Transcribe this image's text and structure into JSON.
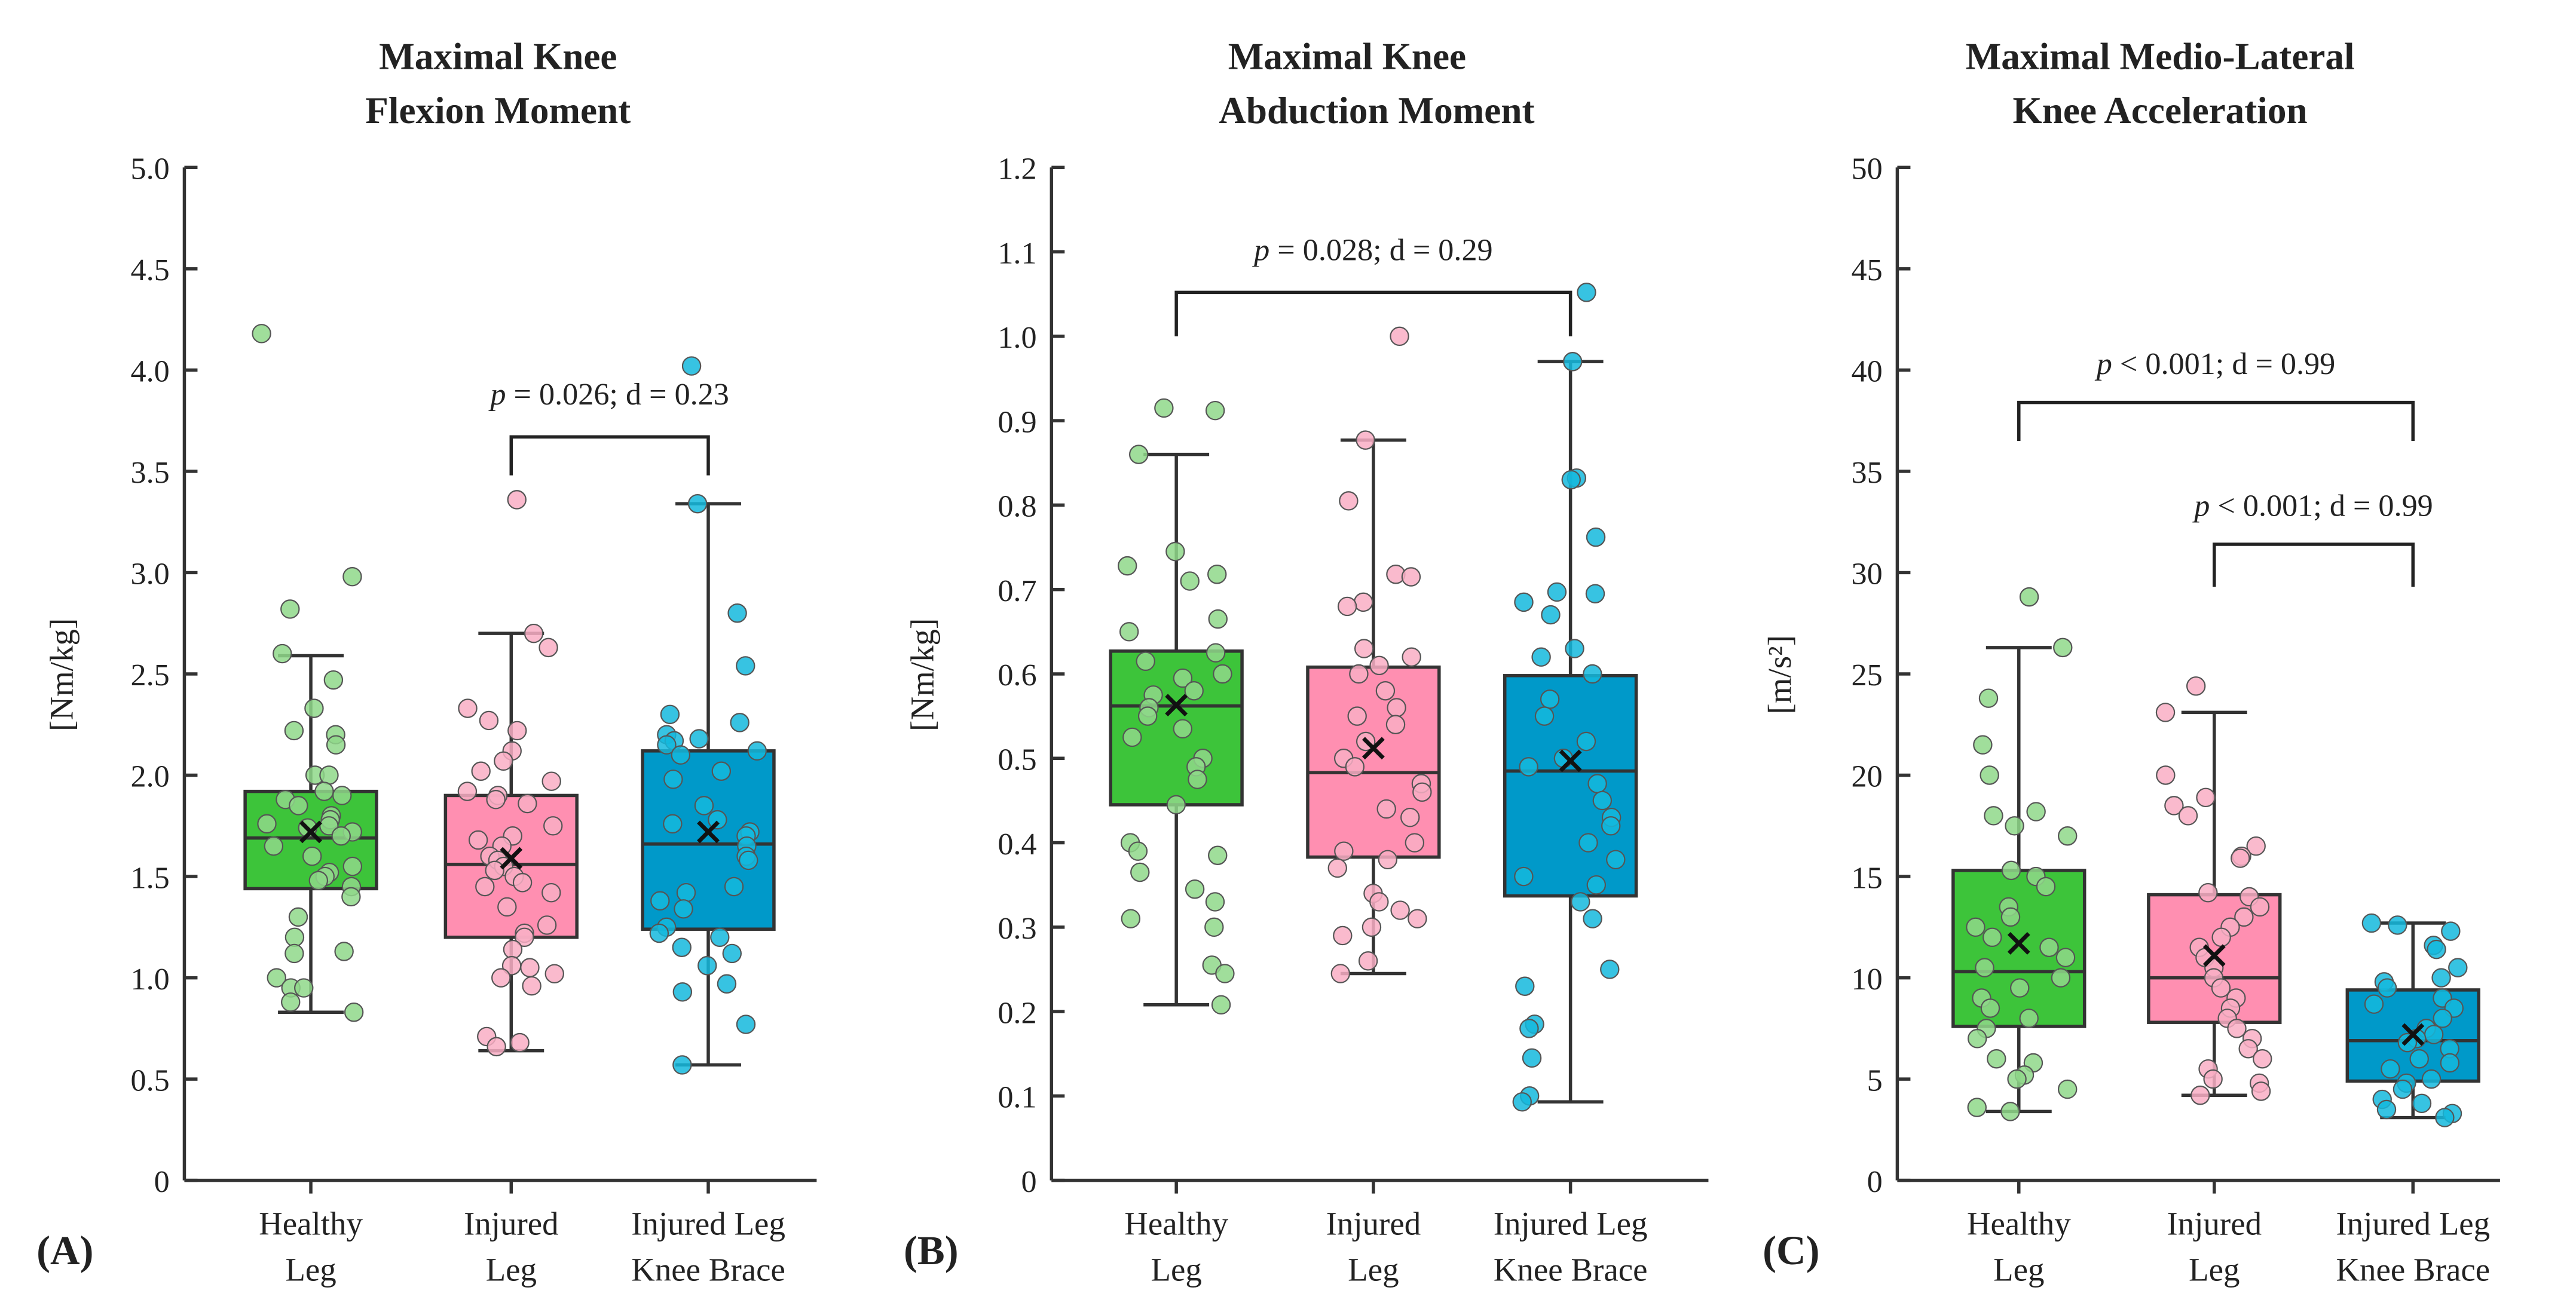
{
  "chart_data": [
    {
      "type": "box",
      "panel_label": "(A)",
      "title_lines": [
        "Maximal Knee",
        "Flexion Moment"
      ],
      "ylabel": "[Nm/kg]",
      "ylim": [
        0,
        5.0
      ],
      "yticks": [
        0,
        0.5,
        1.0,
        1.5,
        2.0,
        2.5,
        3.0,
        3.5,
        4.0,
        4.5,
        5.0
      ],
      "ytick_labels": [
        "0",
        "0.5",
        "1.0",
        "1.5",
        "2.0",
        "2.5",
        "3.0",
        "3.5",
        "4.0",
        "4.5",
        "5.0"
      ],
      "categories": [
        [
          "Healthy",
          "Leg"
        ],
        [
          "Injured",
          "Leg"
        ],
        [
          "Injured Leg",
          "Knee Brace"
        ]
      ],
      "groups": [
        {
          "q1": 1.44,
          "median": 1.69,
          "q3": 1.92,
          "whisker_low": 0.83,
          "whisker_high": 2.59,
          "mean": 1.72,
          "points": [
            4.18,
            2.98,
            2.82,
            2.6,
            2.47,
            2.33,
            2.22,
            2.2,
            2.15,
            2.0,
            2.0,
            1.92,
            1.9,
            1.88,
            1.85,
            1.8,
            1.78,
            1.76,
            1.75,
            1.74,
            1.72,
            1.7,
            1.65,
            1.6,
            1.55,
            1.52,
            1.5,
            1.48,
            1.45,
            1.4,
            1.3,
            1.2,
            1.13,
            1.12,
            1.0,
            0.95,
            0.95,
            0.88,
            0.83
          ]
        },
        {
          "q1": 1.2,
          "median": 1.56,
          "q3": 1.9,
          "whisker_low": 0.64,
          "whisker_high": 2.7,
          "mean": 1.59,
          "points": [
            3.36,
            2.7,
            2.63,
            2.33,
            2.27,
            2.22,
            2.12,
            2.07,
            2.02,
            1.97,
            1.92,
            1.9,
            1.88,
            1.86,
            1.75,
            1.7,
            1.68,
            1.65,
            1.6,
            1.58,
            1.55,
            1.53,
            1.5,
            1.47,
            1.45,
            1.42,
            1.35,
            1.26,
            1.22,
            1.2,
            1.14,
            1.06,
            1.05,
            1.02,
            1.0,
            0.96,
            0.71,
            0.68,
            0.66
          ]
        },
        {
          "q1": 1.24,
          "median": 1.66,
          "q3": 2.12,
          "whisker_low": 0.57,
          "whisker_high": 3.34,
          "mean": 1.72,
          "points": [
            4.02,
            3.34,
            2.8,
            2.54,
            2.3,
            2.26,
            2.2,
            2.18,
            2.17,
            2.15,
            2.12,
            2.1,
            2.02,
            1.98,
            1.85,
            1.78,
            1.76,
            1.72,
            1.7,
            1.65,
            1.6,
            1.58,
            1.45,
            1.42,
            1.38,
            1.34,
            1.25,
            1.22,
            1.2,
            1.15,
            1.12,
            1.06,
            0.97,
            0.93,
            0.77,
            0.57
          ]
        }
      ],
      "annotations": [
        {
          "from": 1,
          "to": 2,
          "y_label": 3.83,
          "y_bar": 3.67,
          "y_end": 3.48,
          "text_italic": "p",
          "text": " = 0.026; d = 0.23"
        }
      ]
    },
    {
      "type": "box",
      "panel_label": "(B)",
      "title_lines": [
        "Maximal Knee",
        "Abduction Moment"
      ],
      "ylabel": "[Nm/kg]",
      "ylim": [
        0,
        1.2
      ],
      "yticks": [
        0,
        0.1,
        0.2,
        0.3,
        0.4,
        0.5,
        0.6,
        0.7,
        0.8,
        0.9,
        1.0,
        1.1,
        1.2
      ],
      "ytick_labels": [
        "0",
        "0.1",
        "0.2",
        "0.3",
        "0.4",
        "0.5",
        "0.6",
        "0.7",
        "0.8",
        "0.9",
        "1.0",
        "1.1",
        "1.2"
      ],
      "categories": [
        [
          "Healthy",
          "Leg"
        ],
        [
          "Injured",
          "Leg"
        ],
        [
          "Injured Leg",
          "Knee Brace"
        ]
      ],
      "groups": [
        {
          "q1": 0.445,
          "median": 0.562,
          "q3": 0.627,
          "whisker_low": 0.208,
          "whisker_high": 0.86,
          "mean": 0.563,
          "points": [
            0.915,
            0.912,
            0.86,
            0.745,
            0.728,
            0.718,
            0.71,
            0.665,
            0.65,
            0.625,
            0.615,
            0.6,
            0.595,
            0.58,
            0.575,
            0.56,
            0.55,
            0.535,
            0.525,
            0.5,
            0.49,
            0.475,
            0.445,
            0.4,
            0.39,
            0.385,
            0.365,
            0.345,
            0.33,
            0.31,
            0.3,
            0.255,
            0.245,
            0.208
          ]
        },
        {
          "q1": 0.383,
          "median": 0.483,
          "q3": 0.608,
          "whisker_low": 0.245,
          "whisker_high": 0.877,
          "mean": 0.512,
          "points": [
            1.0,
            0.877,
            0.805,
            0.718,
            0.715,
            0.685,
            0.68,
            0.63,
            0.62,
            0.61,
            0.6,
            0.58,
            0.56,
            0.55,
            0.54,
            0.52,
            0.5,
            0.49,
            0.47,
            0.46,
            0.44,
            0.43,
            0.4,
            0.39,
            0.38,
            0.37,
            0.34,
            0.33,
            0.32,
            0.31,
            0.3,
            0.29,
            0.26,
            0.245
          ]
        },
        {
          "q1": 0.337,
          "median": 0.485,
          "q3": 0.598,
          "whisker_low": 0.093,
          "whisker_high": 0.97,
          "mean": 0.497,
          "points": [
            1.052,
            0.97,
            0.832,
            0.83,
            0.762,
            0.697,
            0.695,
            0.685,
            0.67,
            0.63,
            0.62,
            0.6,
            0.57,
            0.55,
            0.52,
            0.5,
            0.49,
            0.47,
            0.45,
            0.43,
            0.42,
            0.4,
            0.38,
            0.36,
            0.35,
            0.33,
            0.31,
            0.25,
            0.23,
            0.185,
            0.18,
            0.145,
            0.1,
            0.093
          ]
        }
      ],
      "annotations": [
        {
          "from": 0,
          "to": 2,
          "y_label": 1.09,
          "y_bar": 1.052,
          "y_end": 1.0,
          "text_italic": "p",
          "text": " = 0.028; d = 0.29"
        }
      ]
    },
    {
      "type": "box",
      "panel_label": "(C)",
      "title_lines": [
        "Maximal Medio-Lateral",
        "Knee Acceleration"
      ],
      "ylabel": "[m/s²]",
      "ylim": [
        0,
        50
      ],
      "yticks": [
        0,
        5,
        10,
        15,
        20,
        25,
        30,
        35,
        40,
        45,
        50
      ],
      "ytick_labels": [
        "0",
        "5",
        "10",
        "15",
        "20",
        "25",
        "30",
        "35",
        "40",
        "45",
        "50"
      ],
      "categories": [
        [
          "Healthy",
          "Leg"
        ],
        [
          "Injured",
          "Leg"
        ],
        [
          "Injured Leg",
          "Knee Brace"
        ]
      ],
      "groups": [
        {
          "q1": 7.6,
          "median": 10.3,
          "q3": 15.3,
          "whisker_low": 3.4,
          "whisker_high": 26.3,
          "mean": 11.7,
          "points": [
            28.8,
            26.3,
            23.8,
            21.5,
            20.0,
            18.2,
            18.0,
            17.5,
            17.0,
            15.3,
            15.0,
            14.5,
            13.5,
            13.0,
            12.5,
            12.0,
            11.5,
            11.0,
            10.5,
            10.0,
            9.5,
            9.0,
            8.5,
            8.0,
            7.5,
            7.0,
            6.0,
            5.8,
            5.2,
            5.0,
            4.5,
            3.6,
            3.4
          ]
        },
        {
          "q1": 7.8,
          "median": 10.0,
          "q3": 14.1,
          "whisker_low": 4.2,
          "whisker_high": 23.1,
          "mean": 11.1,
          "points": [
            24.4,
            23.1,
            20.0,
            18.9,
            18.5,
            18.0,
            16.5,
            16.0,
            15.9,
            14.2,
            14.0,
            13.5,
            13.0,
            12.5,
            12.0,
            11.5,
            11.0,
            10.5,
            10.0,
            9.5,
            9.0,
            8.5,
            8.0,
            7.5,
            7.0,
            6.5,
            6.0,
            5.5,
            5.0,
            4.8,
            4.4,
            4.2
          ]
        },
        {
          "q1": 4.9,
          "median": 6.9,
          "q3": 9.4,
          "whisker_low": 3.1,
          "whisker_high": 12.7,
          "mean": 7.2,
          "points": [
            12.7,
            12.6,
            12.3,
            11.6,
            11.4,
            10.5,
            10.0,
            9.8,
            9.5,
            9.0,
            8.7,
            8.5,
            8.0,
            7.5,
            7.2,
            7.0,
            6.8,
            6.5,
            6.0,
            5.8,
            5.5,
            5.0,
            4.8,
            4.5,
            4.0,
            3.8,
            3.5,
            3.3,
            3.1
          ]
        }
      ],
      "annotations": [
        {
          "from": 0,
          "to": 2,
          "y_label": 39.8,
          "y_bar": 38.4,
          "y_end": 36.5,
          "text_italic": "p",
          "text": " < 0.001; d = 0.99"
        },
        {
          "from": 1,
          "to": 2,
          "y_label": 32.8,
          "y_bar": 31.4,
          "y_end": 29.3,
          "text_italic": "p",
          "text": " < 0.001; d = 0.99"
        }
      ]
    }
  ],
  "colors": {
    "box": [
      "#3dc43a",
      "#ff8fb1",
      "#0099c9"
    ],
    "point": [
      "#8fd88a",
      "#f9aec4",
      "#14b9dd"
    ],
    "line": "#333333"
  }
}
